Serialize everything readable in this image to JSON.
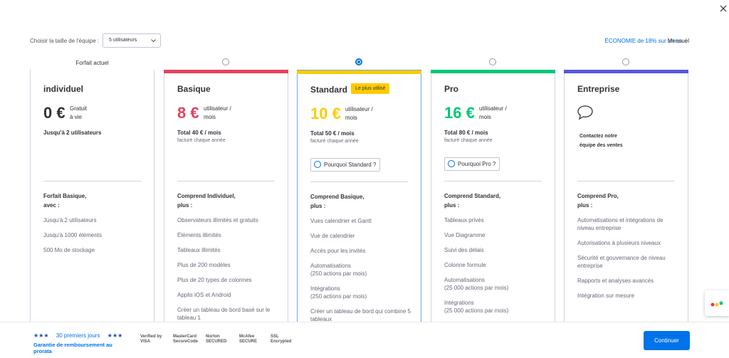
{
  "team_size": {
    "label": "Choisir la taille de l'équipe :",
    "value": "5 utilisateurs"
  },
  "billing": {
    "savings": "ÉCONOMIE de 18% sur un an",
    "monthly": "Mensuel"
  },
  "current_plan_label": "Forfait actuel",
  "plans": [
    {
      "name": "individuel",
      "color": null,
      "price": "0 €",
      "price_unit": "Gratuit\nà vie",
      "total": "Jusqu'à 2 utilisateurs",
      "features_heading": "Forfait Basique,\navec :",
      "features": [
        "Jusqu'à 2 utilisateurs",
        "Jusqu'à 1000 éléments",
        "500 Mo de stockage"
      ]
    },
    {
      "name": "Basique",
      "color": "#e2445c",
      "price": "8 €",
      "price_unit": "utilisateur /\nmois",
      "total": "Total 40 € / mois",
      "billed": "facturé chaque année",
      "features_heading": "Comprend Individuel,\nplus :",
      "features": [
        "Observateurs illimités et gratuits",
        "Éléments illimités",
        "Tableaux illimités",
        "Plus de 200 modèles",
        "Plus de 20 types de colonnes",
        "Applis iOS et Android",
        "Créer un tableau de bord basé sur le tableau 1"
      ]
    },
    {
      "name": "Standard",
      "color": "#ffcb00",
      "badge": "Le plus utilisé",
      "selected": true,
      "price": "10 €",
      "price_unit": "utilisateur /\nmois",
      "total": "Total 50 € / mois",
      "billed": "facturé chaque année",
      "cta": "Pourquoi Standard ?",
      "features_heading": "Comprend Basique,\nplus :",
      "features": [
        "Vues calendrier et Gantt",
        "Vue de calendrier",
        "Accès pour les invités",
        "Automatisations\n(250 actions par mois)",
        "Intégrations\n(250 actions par mois)",
        "Créer un tableau de bord qui combine 5 tableaux"
      ]
    },
    {
      "name": "Pro",
      "color": "#00c875",
      "price": "16 €",
      "price_unit": "utilisateur /\nmois",
      "total": "Total 80 € / mois",
      "billed": "facturé chaque année",
      "cta": "Pourquoi Pro ?",
      "features_heading": "Comprend Standard,\nplus :",
      "features": [
        "Tableaux privés",
        "Vue Diagramme",
        "Suivi des délais",
        "Colonne formule",
        "Automatisations\n(25 000 actions par mois)",
        "Intégrations\n(25 000 actions par mois)"
      ]
    },
    {
      "name": "Entreprise",
      "color": "#5559df",
      "contact": "Contactez notre\néquipe des ventes",
      "features_heading": "Comprend Pro,\nplus :",
      "features": [
        "Automatisations et intégrations de niveau entreprise",
        "Autorisations à plusieurs niveaux",
        "Sécurité et gouvernance de niveau entreprise",
        "Rapports et analyses avancés",
        "Intégration sur mesure"
      ]
    }
  ],
  "footer": {
    "stars_left": "★★★",
    "trial": "30 premiers jours",
    "stars_right": "★★★",
    "guarantee": "Garantie de remboursement au prorata",
    "badges": [
      "Verified by\nVISA",
      "MasterCard\nSecureCode",
      "Norton\nSECURED",
      "McAfee\nSECURE",
      "SSL\nEncrypted"
    ],
    "button": "Continuer"
  }
}
